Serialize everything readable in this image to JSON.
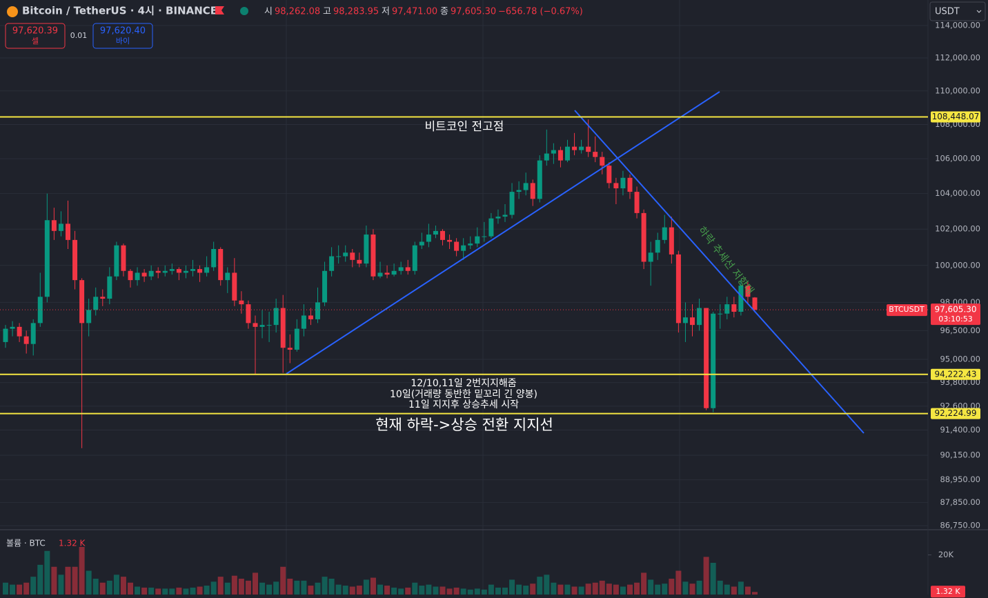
{
  "toolbar": {
    "symbol": "Bitcoin / TetherUS · 4시 · BINANCE",
    "ohlc": [
      {
        "key": "시",
        "value": "98,262.08"
      },
      {
        "key": "고",
        "value": "98,283.95"
      },
      {
        "key": "저",
        "value": "97,471.00"
      },
      {
        "key": "종",
        "value": "97,605.30"
      }
    ],
    "change": "−656.78 (−0.67%)",
    "sell": {
      "price": "97,620.39",
      "label": "셀"
    },
    "spread": "0.01",
    "buy": {
      "price": "97,620.40",
      "label": "바이"
    },
    "currency": "USDT"
  },
  "chart_data": {
    "type": "candlestick",
    "log_scale": true,
    "grid": true,
    "up_color": "#089981",
    "down_color": "#f23645",
    "ylim": [
      86590,
      114300
    ],
    "yticks": [
      {
        "value": 114000,
        "label": "114,000.00"
      },
      {
        "value": 112000,
        "label": "112,000.00"
      },
      {
        "value": 110000,
        "label": "110,000.00"
      },
      {
        "value": 108000,
        "label": "108,000.00"
      },
      {
        "value": 106000,
        "label": "106,000.00"
      },
      {
        "value": 104000,
        "label": "104,000.00"
      },
      {
        "value": 102000,
        "label": "102,000.00"
      },
      {
        "value": 100000,
        "label": "100,000.00"
      },
      {
        "value": 98000,
        "label": "98,000.00"
      },
      {
        "value": 96500,
        "label": "96,500.00"
      },
      {
        "value": 95000,
        "label": "95,000.00"
      },
      {
        "value": 93800,
        "label": "93,800.00"
      },
      {
        "value": 92600,
        "label": "92,600.00"
      },
      {
        "value": 91400,
        "label": "91,400.00"
      },
      {
        "value": 90150,
        "label": "90,150.00"
      },
      {
        "value": 88950,
        "label": "88,950.00"
      },
      {
        "value": 87850,
        "label": "87,850.00"
      },
      {
        "value": 86750,
        "label": "86,750.00"
      }
    ],
    "open": [
      95900,
      96600,
      96700,
      96200,
      95800,
      96900,
      98300,
      102500,
      101900,
      102300,
      101400,
      99200,
      96900,
      97600,
      98300,
      98200,
      99400,
      101100,
      99700,
      99200,
      99600,
      99400,
      99700,
      99600,
      99700,
      99800,
      99600,
      99700,
      99800,
      99600,
      99900,
      100900,
      99200,
      99600,
      98100,
      97900,
      96900,
      96700,
      96800,
      96800,
      97700,
      95600,
      95500,
      96600,
      97300,
      97100,
      98000,
      99700,
      100500,
      100500,
      100700,
      100300,
      100100,
      101700,
      99400,
      99600,
      99500,
      99700,
      99900,
      99700,
      101100,
      101300,
      101700,
      101900,
      101400,
      101300,
      100800,
      101100,
      101200,
      101600,
      101600,
      102600,
      102700,
      102800,
      104100,
      104200,
      104600,
      103700,
      105900,
      106300,
      106500,
      105900,
      106700,
      106500,
      106700,
      106400,
      106100,
      105600,
      104600,
      104300,
      104900,
      104100,
      102900,
      100200,
      100700,
      101400,
      102100,
      100600,
      96900,
      97200,
      96800,
      97700,
      92500,
      97400,
      97400,
      97900,
      97500,
      98900,
      98262.08
    ],
    "high": [
      96800,
      97000,
      96900,
      96500,
      97100,
      99600,
      104000,
      103200,
      103000,
      103600,
      101900,
      99300,
      98200,
      98800,
      98700,
      99900,
      101300,
      101200,
      99800,
      99900,
      99800,
      100000,
      99900,
      100000,
      100100,
      99900,
      100000,
      100300,
      100000,
      100500,
      101300,
      101000,
      99900,
      100400,
      98600,
      98100,
      97300,
      97600,
      97500,
      98200,
      98400,
      96300,
      97100,
      97900,
      97700,
      98800,
      100200,
      101000,
      101100,
      101100,
      100900,
      100700,
      102200,
      102000,
      100200,
      100000,
      100100,
      100200,
      100300,
      101300,
      101800,
      102300,
      102200,
      102000,
      101700,
      101500,
      101500,
      101600,
      102100,
      102400,
      102900,
      103100,
      103400,
      104600,
      104700,
      105200,
      104800,
      106200,
      107700,
      106900,
      106700,
      107100,
      107500,
      107100,
      108300,
      107300,
      106400,
      105800,
      104900,
      105300,
      105100,
      104400,
      103100,
      101300,
      101800,
      102800,
      102700,
      100800,
      98000,
      97900,
      98200,
      97700,
      97500,
      97900,
      98300,
      98300,
      99200,
      99100,
      98283.95
    ],
    "low": [
      95600,
      96200,
      95900,
      95300,
      95200,
      96700,
      98000,
      101400,
      101600,
      100900,
      98700,
      90500,
      96200,
      97300,
      97800,
      97900,
      99200,
      99400,
      98800,
      98900,
      99100,
      99200,
      99300,
      99400,
      99500,
      99200,
      99300,
      99400,
      99100,
      99400,
      99700,
      98900,
      98500,
      97800,
      97400,
      96600,
      94200,
      96100,
      95900,
      96400,
      94300,
      94800,
      95400,
      96200,
      96800,
      96900,
      97800,
      99400,
      100100,
      100200,
      99900,
      99900,
      99900,
      99200,
      99300,
      99300,
      99400,
      99500,
      99500,
      99500,
      100900,
      101000,
      101500,
      101100,
      100900,
      100500,
      100300,
      100900,
      101000,
      101300,
      101500,
      102300,
      102400,
      102600,
      103700,
      103900,
      103300,
      103500,
      105600,
      105700,
      105500,
      105800,
      106200,
      106300,
      106100,
      105800,
      105100,
      104300,
      103400,
      103900,
      103700,
      102600,
      99800,
      98900,
      100300,
      101200,
      100100,
      96400,
      95900,
      96200,
      96500,
      92400,
      92300,
      96600,
      97100,
      97200,
      97300,
      97900,
      97471
    ],
    "close": [
      96600,
      96700,
      96200,
      95800,
      96900,
      98300,
      102500,
      101900,
      102300,
      101400,
      99200,
      96900,
      97600,
      98300,
      98200,
      99400,
      101100,
      99700,
      99200,
      99600,
      99400,
      99700,
      99600,
      99700,
      99800,
      99600,
      99700,
      99800,
      99600,
      99900,
      100900,
      99200,
      99600,
      98100,
      97900,
      96900,
      96700,
      96800,
      96800,
      97700,
      95600,
      95500,
      96600,
      97300,
      97100,
      98000,
      99700,
      100500,
      100500,
      100700,
      100300,
      100100,
      101700,
      99400,
      99600,
      99500,
      99700,
      99900,
      99700,
      101100,
      101300,
      101700,
      101900,
      101400,
      101300,
      100800,
      101100,
      101200,
      101600,
      101600,
      102600,
      102700,
      102800,
      104100,
      104200,
      104600,
      103700,
      105900,
      106300,
      106500,
      105900,
      106700,
      106500,
      106700,
      106400,
      106100,
      105600,
      104600,
      104300,
      104900,
      104100,
      102900,
      100200,
      100700,
      101400,
      102100,
      100600,
      96900,
      97200,
      96800,
      97700,
      92500,
      97400,
      97400,
      97900,
      97500,
      98900,
      98300,
      97605.3
    ],
    "volume": [
      6000,
      5000,
      5000,
      6000,
      9000,
      15000,
      22000,
      14000,
      10000,
      14000,
      14000,
      24000,
      12000,
      8000,
      6000,
      7000,
      10000,
      9000,
      6000,
      4000,
      3500,
      3500,
      3000,
      3000,
      3000,
      3500,
      3000,
      3500,
      4000,
      4500,
      6500,
      9000,
      6000,
      9500,
      8000,
      7000,
      11000,
      6000,
      5000,
      6500,
      14000,
      8000,
      7000,
      7000,
      4500,
      6000,
      9000,
      8000,
      5000,
      4500,
      4000,
      4500,
      7500,
      8500,
      5000,
      4500,
      3500,
      3000,
      3500,
      6000,
      4500,
      5000,
      4000,
      4000,
      3000,
      3500,
      3000,
      2500,
      3000,
      2500,
      5000,
      3500,
      3500,
      7500,
      5000,
      4500,
      5500,
      9000,
      10000,
      6000,
      5000,
      5000,
      4000,
      4000,
      5500,
      6000,
      7000,
      5500,
      5000,
      4000,
      5000,
      6000,
      11000,
      7500,
      5000,
      5500,
      8000,
      12000,
      6500,
      5500,
      7000,
      19000,
      16000,
      7000,
      5000,
      4000,
      6500,
      4000,
      1320
    ],
    "levels": [
      {
        "value": 108448.07,
        "label": "108,448.07"
      },
      {
        "value": 94222.43,
        "label": "94,222.43"
      },
      {
        "value": 92224.99,
        "label": "92,224.99"
      }
    ],
    "level_color": "#f5e642",
    "symbol_label": "BTCUSDT",
    "last_price_label": "97,605.30",
    "countdown": "03:10:53",
    "annotations": [
      "비트코인 전고점",
      "12/10,11일 2번지지해줌",
      "10일(거래량 동반한 밑꼬리 긴 양봉)",
      "11일 지지후 상승추세 시작",
      "현재 하락->상승 전환 지지선",
      "하락 추세선 저항대"
    ],
    "volume_pane": {
      "title": "볼륨 · BTC",
      "last_label": "1.32 K",
      "ylim": [
        0,
        32000
      ],
      "yticks": [
        {
          "value": 20000,
          "label": "20K"
        }
      ]
    }
  }
}
